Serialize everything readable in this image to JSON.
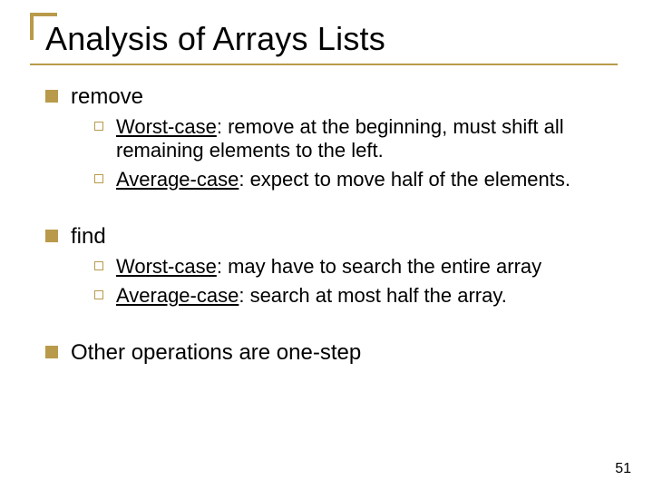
{
  "title": "Analysis of Arrays Lists",
  "page_number": "51",
  "accent_color": "#b89a4a",
  "text_color": "#000000",
  "bg_color": "#ffffff",
  "title_fontsize": 36,
  "body_fontsize": 24,
  "sub_fontsize": 22,
  "sections": {
    "s1": {
      "heading": "remove",
      "items": {
        "i1": {
          "label": "Worst-case",
          "rest": ": remove at the beginning, must shift all remaining elements to the left."
        },
        "i2": {
          "label": "Average-case",
          "rest": ": expect to move half of the elements."
        }
      }
    },
    "s2": {
      "heading": "find",
      "items": {
        "i1": {
          "label": "Worst-case",
          "rest": ": may have to search the entire array"
        },
        "i2": {
          "label": "Average-case",
          "rest": ": search at most half the array."
        }
      }
    },
    "s3": {
      "heading": "Other operations are one-step"
    }
  }
}
